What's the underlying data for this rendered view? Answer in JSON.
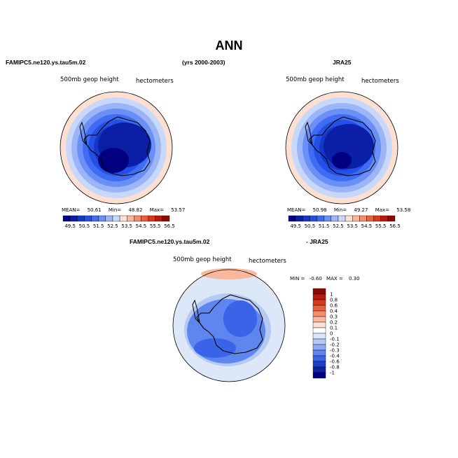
{
  "title": "ANN",
  "header": {
    "left": "FAMIPC5.ne120.ys.tau5m.02",
    "center": "(yrs 2000-2003)",
    "right": "JRA25",
    "diff_left": "FAMIPC5.ne120.ys.tau5m.02",
    "diff_right": "- JRA25"
  },
  "chart_data": [
    {
      "type": "heatmap",
      "subtitle": "500mb geop height",
      "units": "hectometers",
      "stats": {
        "mean_label": "MEAN=",
        "mean": "50.61",
        "min_label": "Min=",
        "min": "48.82",
        "max_label": "Max=",
        "max": "53.57"
      },
      "levels": [
        "49.5",
        "50.5",
        "51.5",
        "52.5",
        "53.5",
        "54.5",
        "55.5",
        "56.5"
      ],
      "colors": [
        "#000080",
        "#0a1ea6",
        "#1437c8",
        "#2550e6",
        "#3f6cf2",
        "#6a8ff5",
        "#9bb5f7",
        "#c8d8fa",
        "#fde0d2",
        "#f9b79c",
        "#f28e6c",
        "#e8623f",
        "#d63a1e",
        "#b51b0e",
        "#8a0b06"
      ],
      "rings_colors": [
        "#fde0d2",
        "#c8d8fa",
        "#9bb5f7",
        "#6a8ff5",
        "#3f6cf2",
        "#2550e6",
        "#1437c8",
        "#0a1ea6"
      ]
    },
    {
      "type": "heatmap",
      "subtitle": "500mb geop height",
      "units": "hectometers",
      "stats": {
        "mean_label": "MEAN=",
        "mean": "50.98",
        "min_label": "Min=",
        "min": "49.27",
        "max_label": "Max=",
        "max": "53.58"
      },
      "levels": [
        "49.5",
        "50.5",
        "51.5",
        "52.5",
        "53.5",
        "54.5",
        "55.5",
        "56.5"
      ]
    },
    {
      "type": "heatmap",
      "subtitle": "500mb geop height",
      "units": "hectometers",
      "stats": {
        "min_label": "MIN =",
        "min": "-0.60",
        "max_label": "MAX =",
        "max": "0.30"
      },
      "levels": [
        "1",
        "0.8",
        "0.6",
        "0.4",
        "0.3",
        "0.2",
        "0.1",
        "0",
        "-0.1",
        "-0.2",
        "-0.3",
        "-0.4",
        "-0.6",
        "-0.8",
        "-1"
      ],
      "colors": [
        "#8a0b06",
        "#b51b0e",
        "#d63a1e",
        "#e8623f",
        "#f28e6c",
        "#f9b79c",
        "#fde0d2",
        "#ffffff",
        "#dce8f8",
        "#b4c9f4",
        "#8eaaf2",
        "#5f85ef",
        "#3a63e8",
        "#1f40c8",
        "#0c24a0",
        "#000080"
      ]
    }
  ]
}
